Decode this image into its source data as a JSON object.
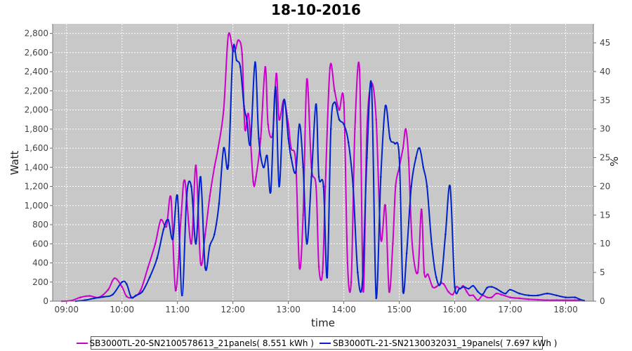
{
  "chart_data": {
    "type": "line",
    "title": "18-10-2016",
    "xlabel": "time",
    "ylabel": "Watt",
    "y2label": "%",
    "ylim": [
      0,
      2900
    ],
    "y2lim": [
      0,
      48.3
    ],
    "xlim": [
      "08:45",
      "18:30"
    ],
    "x_ticks": [
      "09:00",
      "10:00",
      "11:00",
      "12:00",
      "13:00",
      "14:00",
      "15:00",
      "16:00",
      "17:00",
      "18:00"
    ],
    "y_ticks": [
      "0",
      "200",
      "400",
      "600",
      "800",
      "1,000",
      "1,200",
      "1,400",
      "1,600",
      "1,800",
      "2,000",
      "2,200",
      "2,400",
      "2,600",
      "2,800"
    ],
    "y2_ticks": [
      "0",
      "5",
      "10",
      "15",
      "20",
      "25",
      "30",
      "35",
      "40",
      "45"
    ],
    "grid": true,
    "background": "#c8c8c8",
    "legend_position": "bottom",
    "series": [
      {
        "name": "SB3000TL-20-SN2100578613_21panels( 8.551 kWh )",
        "color": "#cc00cc",
        "x": [
          "08:55",
          "09:05",
          "09:15",
          "09:25",
          "09:35",
          "09:45",
          "09:52",
          "10:00",
          "10:05",
          "10:12",
          "10:20",
          "10:28",
          "10:36",
          "10:42",
          "10:48",
          "10:53",
          "10:58",
          "11:04",
          "11:08",
          "11:15",
          "11:20",
          "11:25",
          "11:30",
          "11:35",
          "11:40",
          "11:44",
          "11:50",
          "11:55",
          "12:00",
          "12:03",
          "12:06",
          "12:10",
          "12:13",
          "12:17",
          "12:22",
          "12:25",
          "12:30",
          "12:35",
          "12:38",
          "12:43",
          "12:47",
          "12:50",
          "12:55",
          "13:00",
          "13:03",
          "13:08",
          "13:12",
          "13:16",
          "13:20",
          "13:25",
          "13:30",
          "13:33",
          "13:37",
          "13:40",
          "13:45",
          "13:50",
          "13:55",
          "14:00",
          "14:04",
          "14:08",
          "14:12",
          "14:17",
          "14:21",
          "14:25",
          "14:30",
          "14:35",
          "14:40",
          "14:45",
          "14:49",
          "14:53",
          "14:56",
          "15:00",
          "15:04",
          "15:07",
          "15:10",
          "15:14",
          "15:20",
          "15:24",
          "15:27",
          "15:31",
          "15:36",
          "15:40",
          "15:44",
          "15:48",
          "15:53",
          "15:58",
          "16:02",
          "16:06",
          "16:09",
          "16:13",
          "16:16",
          "16:20",
          "16:25",
          "16:30",
          "16:35",
          "16:40",
          "16:45",
          "16:50",
          "17:00",
          "17:10",
          "17:20",
          "17:30",
          "17:40",
          "17:50",
          "18:00",
          "18:10",
          "18:15"
        ],
        "y": [
          0,
          5,
          40,
          55,
          40,
          120,
          240,
          150,
          50,
          40,
          110,
          350,
          600,
          850,
          780,
          1080,
          110,
          900,
          1260,
          600,
          1420,
          400,
          700,
          1100,
          1400,
          1600,
          2000,
          2780,
          2620,
          2640,
          2730,
          2580,
          1800,
          1950,
          1250,
          1300,
          1700,
          2450,
          1850,
          1750,
          2380,
          1900,
          2100,
          1850,
          1600,
          1450,
          350,
          900,
          2320,
          1400,
          1200,
          360,
          300,
          1200,
          2440,
          2200,
          2000,
          2080,
          400,
          200,
          1800,
          2420,
          100,
          1800,
          2280,
          1900,
          650,
          1000,
          100,
          600,
          1200,
          1400,
          1600,
          1800,
          1500,
          600,
          300,
          960,
          300,
          280,
          150,
          150,
          180,
          180,
          100,
          70,
          150,
          130,
          160,
          100,
          60,
          60,
          10,
          60,
          40,
          40,
          80,
          70,
          40,
          30,
          20,
          15,
          10,
          10,
          10,
          10,
          10
        ]
      },
      {
        "name": "SB3000TL-21-SN2130032031_19panels( 7.697 kWh )",
        "color": "#0022cc",
        "x": [
          "09:10",
          "09:20",
          "09:30",
          "09:40",
          "09:50",
          "10:00",
          "10:05",
          "10:10",
          "10:15",
          "10:22",
          "10:30",
          "10:38",
          "10:45",
          "10:50",
          "10:55",
          "11:00",
          "11:05",
          "11:10",
          "11:15",
          "11:20",
          "11:25",
          "11:30",
          "11:35",
          "11:40",
          "11:45",
          "11:50",
          "11:55",
          "12:00",
          "12:04",
          "12:08",
          "12:12",
          "12:15",
          "12:19",
          "12:24",
          "12:28",
          "12:33",
          "12:37",
          "12:41",
          "12:46",
          "12:50",
          "12:55",
          "13:00",
          "13:03",
          "13:08",
          "13:12",
          "13:16",
          "13:20",
          "13:25",
          "13:30",
          "13:33",
          "13:38",
          "13:42",
          "13:46",
          "13:50",
          "13:55",
          "14:00",
          "14:05",
          "14:10",
          "14:15",
          "14:20",
          "14:25",
          "14:30",
          "14:35",
          "14:40",
          "14:45",
          "14:50",
          "14:55",
          "15:00",
          "15:04",
          "15:08",
          "15:13",
          "15:18",
          "15:22",
          "15:26",
          "15:30",
          "15:35",
          "15:40",
          "15:45",
          "15:50",
          "15:55",
          "16:00",
          "16:05",
          "16:10",
          "16:15",
          "16:20",
          "16:25",
          "16:30",
          "16:35",
          "16:40",
          "16:45",
          "16:50",
          "16:55",
          "17:00",
          "17:10",
          "17:20",
          "17:30",
          "17:40",
          "17:50",
          "18:00",
          "18:10",
          "18:15",
          "18:20"
        ],
        "y": [
          0,
          10,
          30,
          45,
          70,
          200,
          180,
          40,
          60,
          100,
          250,
          450,
          750,
          850,
          650,
          1100,
          60,
          1100,
          1200,
          600,
          1300,
          350,
          580,
          700,
          1020,
          1600,
          1420,
          2620,
          2520,
          2450,
          2040,
          1900,
          1650,
          2500,
          1700,
          1400,
          1520,
          1150,
          2240,
          1200,
          2100,
          1700,
          1500,
          1350,
          1850,
          1400,
          600,
          1300,
          2060,
          1300,
          1200,
          250,
          1800,
          2080,
          1900,
          1850,
          1660,
          1200,
          300,
          180,
          1500,
          2250,
          30,
          1300,
          2040,
          1700,
          1650,
          1500,
          100,
          500,
          1200,
          1500,
          1600,
          1400,
          1200,
          600,
          250,
          200,
          700,
          1200,
          150,
          130,
          150,
          130,
          160,
          100,
          70,
          140,
          150,
          130,
          100,
          80,
          120,
          80,
          60,
          60,
          80,
          60,
          40,
          40,
          20,
          5
        ]
      }
    ]
  }
}
